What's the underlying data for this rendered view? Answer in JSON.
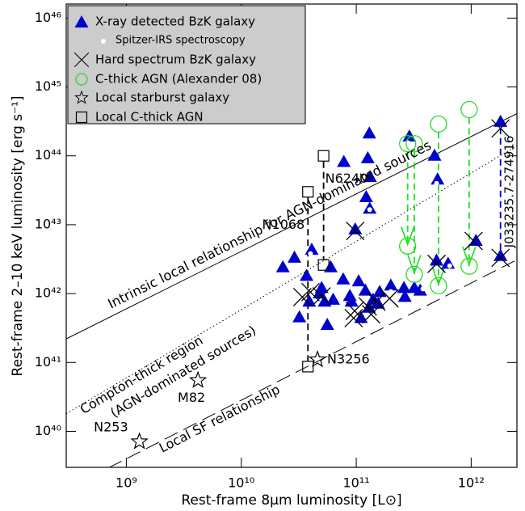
{
  "chart_data": {
    "type": "scatter",
    "x_label": "Rest-frame 8μm luminosity [L⊙]",
    "y_label": "Rest-frame 2–10 keV luminosity [erg s⁻¹]",
    "xscale": "log",
    "yscale": "log",
    "xlim": [
      300000000.0,
      2500000000000.0
    ],
    "ylim": [
      3e+39,
      1.6e+46
    ],
    "xticks": [
      {
        "value": 1000000000.0,
        "label": "10⁹"
      },
      {
        "value": 10000000000.0,
        "label": "10¹⁰"
      },
      {
        "value": 100000000000.0,
        "label": "10¹¹"
      },
      {
        "value": 1000000000000.0,
        "label": "10¹²"
      }
    ],
    "yticks": [
      {
        "value": 1e+40,
        "label": "10⁴⁰"
      },
      {
        "value": 1e+41,
        "label": "10⁴¹"
      },
      {
        "value": 1e+42,
        "label": "10⁴²"
      },
      {
        "value": 1e+43,
        "label": "10⁴³"
      },
      {
        "value": 1e+44,
        "label": "10⁴⁴"
      },
      {
        "value": 1e+45,
        "label": "10⁴⁵"
      },
      {
        "value": 1e+46,
        "label": "10⁴⁶"
      }
    ],
    "legend": "upper left",
    "series": [
      {
        "name": "X-ray detected BzK galaxy",
        "marker": "triangle",
        "color": "#0000cc",
        "linked": "dashed",
        "x": [
          130000000000.0,
          126000000000.0,
          78000000000.0,
          132000000000.0,
          122000000000.0,
          98000000000.0,
          131000000000.0,
          1800000000000.0,
          23000000000.0,
          41000000000.0,
          29000000000.0,
          37000000000.0,
          50000000000.0,
          60000000000.0,
          77000000000.0,
          88000000000.0,
          105000000000.0,
          120000000000.0,
          160000000000.0,
          200000000000.0,
          260000000000.0,
          360000000000.0,
          630000000000.0,
          1100000000000.0,
          1800000000000.0,
          290000000000.0,
          480000000000.0,
          510000000000.0,
          500000000000.0,
          32000000000.0,
          53000000000.0,
          56000000000.0,
          110000000000.0,
          129000000000.0,
          140000000000.0,
          48000000000.0,
          63000000000.0,
          155000000000.0,
          265000000000.0,
          39000000000.0,
          91000000000.0,
          320000000000.0
        ],
        "values": [
          2.1e+44,
          9.2e+43,
          8.1e+43,
          4.9e+43,
          2.5e+43,
          8.5e+42,
          1.7e+43,
          3.1e+44,
          2.4e+42,
          4.3e+42,
          3.3e+42,
          1.8e+42,
          1.2e+42,
          2.4e+42,
          1.6e+42,
          9.2e+41,
          1.5e+42,
          1.1e+42,
          1.05e+42,
          1.3e+42,
          1.2e+42,
          1.1e+42,
          2.7e+42,
          5.8e+42,
          3.5e+42,
          1.9e+44,
          1e+44,
          4.5e+43,
          3e+42,
          4.5e+41,
          7.6e+41,
          3.5e+41,
          4.4e+41,
          6.2e+41,
          8.1e+41,
          1e+42,
          8.1e+41,
          7.1e+41,
          8.9e+41,
          7.6e+41,
          7.6e+41,
          1.2e+42
        ]
      },
      {
        "name": "Spitzer-IRS spectroscopy",
        "marker": "dot",
        "color": "#ffffff",
        "x": [
          280000000000.0,
          500000000000.0,
          131000000000.0,
          40000000000.0,
          650000000000.0,
          380000000000.0,
          200000000000.0
        ],
        "values": [
          1.6e+44,
          4.1e+43,
          1.7e+43,
          3.9e+42,
          2.6e+42,
          1.2e+42,
          1.1e+42
        ]
      },
      {
        "name": "Hard spectrum BzK galaxy",
        "marker": "cross",
        "color": "#000000",
        "x": [
          98000000000.0,
          34000000000.0,
          50000000000.0,
          97000000000.0,
          126000000000.0,
          150000000000.0,
          195000000000.0,
          95000000000.0,
          135000000000.0,
          500000000000.0,
          1050000000000.0,
          1800000000000.0,
          1800000000000.0,
          40000000000.0
        ],
        "values": [
          8.1e+42,
          8.9e+41,
          9.1e+41,
          5.6e+41,
          6.5e+41,
          7.6e+41,
          8.5e+41,
          4.4e+41,
          5e+41,
          2.7e+42,
          5.8e+42,
          3.3e+42,
          2.5e+44,
          1.05e+42
        ]
      },
      {
        "name": "C-thick AGN (Alexander 08)",
        "marker": "open-circle",
        "color": "#22dd22",
        "linked": "arrow",
        "x": [
          280000000000.0,
          320000000000.0,
          520000000000.0,
          960000000000.0,
          280000000000.0,
          320000000000.0,
          520000000000.0,
          960000000000.0
        ],
        "values": [
          1.5e+44,
          1.5e+44,
          2.9e+44,
          4.7e+44,
          4.9e+42,
          1.9e+42,
          1.3e+42,
          2.5e+42
        ]
      },
      {
        "name": "Local starburst galaxy",
        "marker": "star",
        "color": "#000000",
        "x": [
          1300000000.0,
          4200000000.0,
          46000000000.0
        ],
        "values": [
          7.1e+39,
          5.5e+40,
          1.1e+41
        ],
        "point_labels": [
          "N253",
          "M82",
          "N3256"
        ]
      },
      {
        "name": "Local C-thick AGN",
        "marker": "square",
        "color": "#000000",
        "linked": "dashed",
        "x": [
          38000000000.0,
          52000000000.0,
          52000000000.0,
          38000000000.0
        ],
        "values": [
          3e+43,
          1e+44,
          2.6e+42,
          8.7e+40
        ],
        "point_labels": [
          "N1068",
          "N6240",
          null,
          null
        ]
      }
    ],
    "lines": [
      {
        "x": [
          300000000.0,
          2500000000000.0
        ],
        "y": [
          2.2e+41,
          4.1e+44
        ],
        "style": "solid",
        "label": "Intrinsic local relationship for AGN-dominated sources"
      },
      {
        "x": [
          300000000.0,
          2500000000000.0
        ],
        "y": [
          1.8e+40,
          1.4e+44
        ],
        "style": "dotted"
      },
      {
        "x": [
          700000000.0,
          2500000000000.0
        ],
        "y": [
          2.95e+39,
          3.1e+42
        ],
        "style": "dashed",
        "label": "Local SF relationship"
      }
    ],
    "annotations": [
      "Compton-thick region",
      "(AGN-dominated sources)",
      "J033235.7-274916"
    ]
  }
}
